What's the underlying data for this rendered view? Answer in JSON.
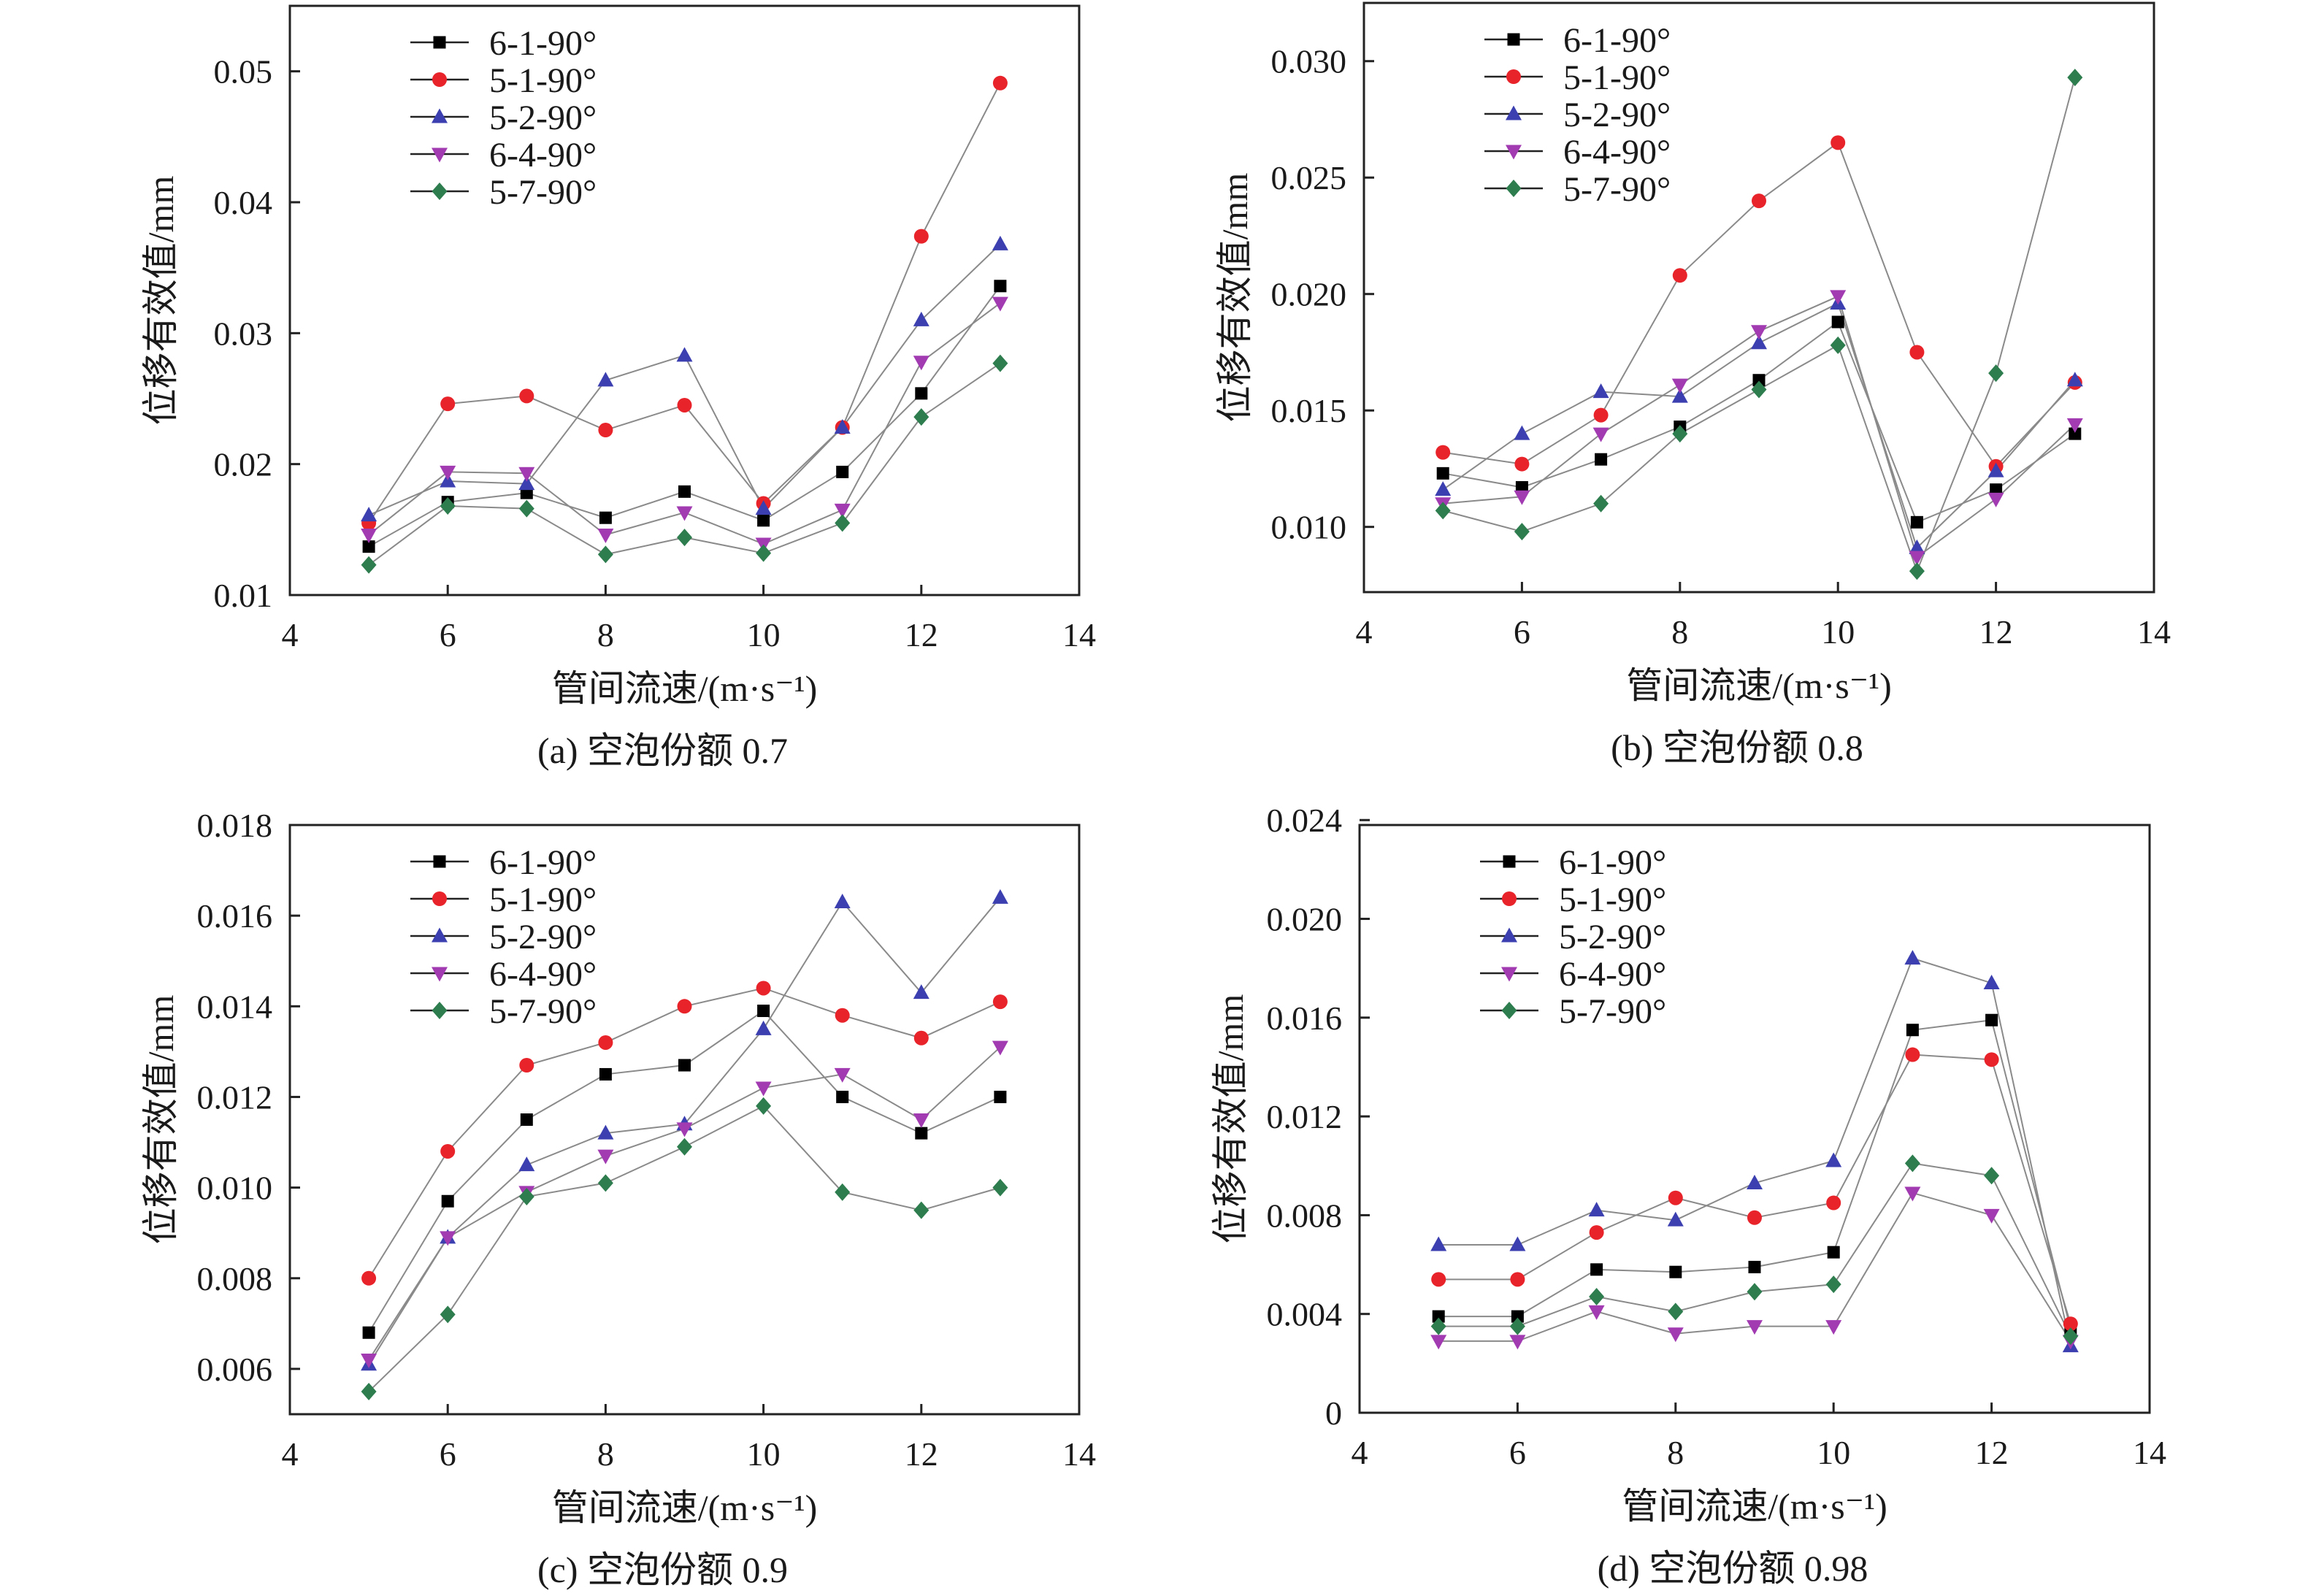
{
  "chart_data": [
    {
      "type": "line",
      "caption": "(a) 空泡份额 0.7",
      "xlabel": "管间流速/(m·s⁻¹)",
      "ylabel": "位移有效值/mm",
      "xlim": [
        4,
        14
      ],
      "ylim": [
        0.01,
        0.055
      ],
      "xticks": [
        4,
        6,
        8,
        10,
        12,
        14
      ],
      "yticks": [
        0.01,
        0.02,
        0.03,
        0.04,
        0.05
      ],
      "ytick_labels": [
        "0.01",
        "0.02",
        "0.03",
        "0.04",
        "0.05"
      ],
      "legend_position": "top-left",
      "grid": false,
      "x": [
        5,
        6,
        7,
        8,
        9,
        10,
        11,
        12,
        13
      ],
      "series": [
        {
          "name": "6-1-90°",
          "color": "#000000",
          "marker": "square",
          "values": [
            0.0137,
            0.0171,
            0.0178,
            0.0159,
            0.0179,
            0.0157,
            0.0194,
            0.0254,
            0.0336
          ]
        },
        {
          "name": "5-1-90°",
          "color": "#e8232a",
          "marker": "circle",
          "values": [
            0.0155,
            0.0246,
            0.0252,
            0.0226,
            0.0245,
            0.017,
            0.0228,
            0.0374,
            0.0491
          ]
        },
        {
          "name": "5-2-90°",
          "color": "#3b3fb0",
          "marker": "triangle-up",
          "values": [
            0.0161,
            0.0187,
            0.0185,
            0.0264,
            0.0283,
            0.0166,
            0.0228,
            0.031,
            0.0368
          ]
        },
        {
          "name": "6-4-90°",
          "color": "#a23bb2",
          "marker": "triangle-down",
          "values": [
            0.0146,
            0.0194,
            0.0193,
            0.0146,
            0.0163,
            0.0139,
            0.0165,
            0.0278,
            0.0323
          ]
        },
        {
          "name": "5-7-90°",
          "color": "#2e7d4f",
          "marker": "diamond",
          "values": [
            0.0123,
            0.0168,
            0.0166,
            0.0131,
            0.0144,
            0.0132,
            0.0155,
            0.0236,
            0.0277
          ]
        }
      ]
    },
    {
      "type": "line",
      "caption": "(b) 空泡份额 0.8",
      "xlabel": "管间流速/(m·s⁻¹)",
      "ylabel": "位移有效值/mm",
      "xlim": [
        4,
        14
      ],
      "ylim": [
        0.0072,
        0.0325
      ],
      "xticks": [
        4,
        6,
        8,
        10,
        12,
        14
      ],
      "yticks": [
        0.01,
        0.015,
        0.02,
        0.025,
        0.03
      ],
      "ytick_labels": [
        "0.010",
        "0.015",
        "0.020",
        "0.025",
        "0.030"
      ],
      "legend_position": "top-left",
      "grid": false,
      "x": [
        5,
        6,
        7,
        8,
        9,
        10,
        11,
        12,
        13
      ],
      "series": [
        {
          "name": "6-1-90°",
          "color": "#000000",
          "marker": "square",
          "values": [
            0.0123,
            0.0117,
            0.0129,
            0.0143,
            0.0163,
            0.0188,
            0.0102,
            0.0116,
            0.014
          ]
        },
        {
          "name": "5-1-90°",
          "color": "#e8232a",
          "marker": "circle",
          "values": [
            0.0132,
            0.0127,
            0.0148,
            0.0208,
            0.024,
            0.0265,
            0.0175,
            0.0126,
            0.0162
          ]
        },
        {
          "name": "5-2-90°",
          "color": "#3b3fb0",
          "marker": "triangle-up",
          "values": [
            0.0116,
            0.014,
            0.0158,
            0.0156,
            0.0179,
            0.0196,
            0.0091,
            0.0124,
            0.0163
          ]
        },
        {
          "name": "6-4-90°",
          "color": "#a23bb2",
          "marker": "triangle-down",
          "values": [
            0.011,
            0.0113,
            0.014,
            0.0161,
            0.0184,
            0.0199,
            0.0087,
            0.0112,
            0.0144
          ]
        },
        {
          "name": "5-7-90°",
          "color": "#2e7d4f",
          "marker": "diamond",
          "values": [
            0.0107,
            0.0098,
            0.011,
            0.014,
            0.0159,
            0.0178,
            0.0081,
            0.0166,
            0.0293
          ]
        }
      ]
    },
    {
      "type": "line",
      "caption": "(c) 空泡份额 0.9",
      "xlabel": "管间流速/(m·s⁻¹)",
      "ylabel": "位移有效值/mm",
      "xlim": [
        4,
        14
      ],
      "ylim": [
        0.005,
        0.018
      ],
      "xticks": [
        4,
        6,
        8,
        10,
        12,
        14
      ],
      "yticks": [
        0.006,
        0.008,
        0.01,
        0.012,
        0.014,
        0.016,
        0.018
      ],
      "ytick_labels": [
        "0.006",
        "0.008",
        "0.010",
        "0.012",
        "0.014",
        "0.016",
        "0.018"
      ],
      "legend_position": "top-left",
      "grid": false,
      "x": [
        5,
        6,
        7,
        8,
        9,
        10,
        11,
        12,
        13
      ],
      "series": [
        {
          "name": "6-1-90°",
          "color": "#000000",
          "marker": "square",
          "values": [
            0.0068,
            0.0097,
            0.0115,
            0.0125,
            0.0127,
            0.0139,
            0.012,
            0.0112,
            0.012
          ]
        },
        {
          "name": "5-1-90°",
          "color": "#e8232a",
          "marker": "circle",
          "values": [
            0.008,
            0.0108,
            0.0127,
            0.0132,
            0.014,
            0.0144,
            0.0138,
            0.0133,
            0.0141
          ]
        },
        {
          "name": "5-2-90°",
          "color": "#3b3fb0",
          "marker": "triangle-up",
          "values": [
            0.0061,
            0.0089,
            0.0105,
            0.0112,
            0.0114,
            0.0135,
            0.0163,
            0.0143,
            0.0164
          ]
        },
        {
          "name": "6-4-90°",
          "color": "#a23bb2",
          "marker": "triangle-down",
          "values": [
            0.0062,
            0.0089,
            0.0099,
            0.0107,
            0.0113,
            0.0122,
            0.0125,
            0.0115,
            0.0131
          ]
        },
        {
          "name": "5-7-90°",
          "color": "#2e7d4f",
          "marker": "diamond",
          "values": [
            0.0055,
            0.0072,
            0.0098,
            0.0101,
            0.0109,
            0.0118,
            0.0099,
            0.0095,
            0.01
          ]
        }
      ]
    },
    {
      "type": "line",
      "caption": "(d) 空泡份额 0.98",
      "xlabel": "管间流速/(m·s⁻¹)",
      "ylabel": "位移有效值/mm",
      "xlim": [
        4,
        14
      ],
      "ylim": [
        0,
        0.0238
      ],
      "xticks": [
        4,
        6,
        8,
        10,
        12,
        14
      ],
      "yticks": [
        0,
        0.004,
        0.008,
        0.012,
        0.016,
        0.02,
        0.024
      ],
      "ytick_labels": [
        "0",
        "0.004",
        "0.008",
        "0.012",
        "0.016",
        "0.020",
        "0.024"
      ],
      "legend_position": "top-left",
      "grid": false,
      "x": [
        5,
        6,
        7,
        8,
        9,
        10,
        11,
        12,
        13
      ],
      "series": [
        {
          "name": "6-1-90°",
          "color": "#000000",
          "marker": "square",
          "values": [
            0.0039,
            0.0039,
            0.0058,
            0.0057,
            0.0059,
            0.0065,
            0.0155,
            0.0159,
            0.0034
          ]
        },
        {
          "name": "5-1-90°",
          "color": "#e8232a",
          "marker": "circle",
          "values": [
            0.0054,
            0.0054,
            0.0073,
            0.0087,
            0.0079,
            0.0085,
            0.0145,
            0.0143,
            0.0036
          ]
        },
        {
          "name": "5-2-90°",
          "color": "#3b3fb0",
          "marker": "triangle-up",
          "values": [
            0.0068,
            0.0068,
            0.0082,
            0.0078,
            0.0093,
            0.0102,
            0.0184,
            0.0174,
            0.0027
          ]
        },
        {
          "name": "6-4-90°",
          "color": "#a23bb2",
          "marker": "triangle-down",
          "values": [
            0.0029,
            0.0029,
            0.0041,
            0.0032,
            0.0035,
            0.0035,
            0.0089,
            0.008,
            0.0029
          ]
        },
        {
          "name": "5-7-90°",
          "color": "#2e7d4f",
          "marker": "diamond",
          "values": [
            0.0035,
            0.0035,
            0.0047,
            0.0041,
            0.0049,
            0.0052,
            0.0101,
            0.0096,
            0.0031
          ]
        }
      ]
    }
  ]
}
